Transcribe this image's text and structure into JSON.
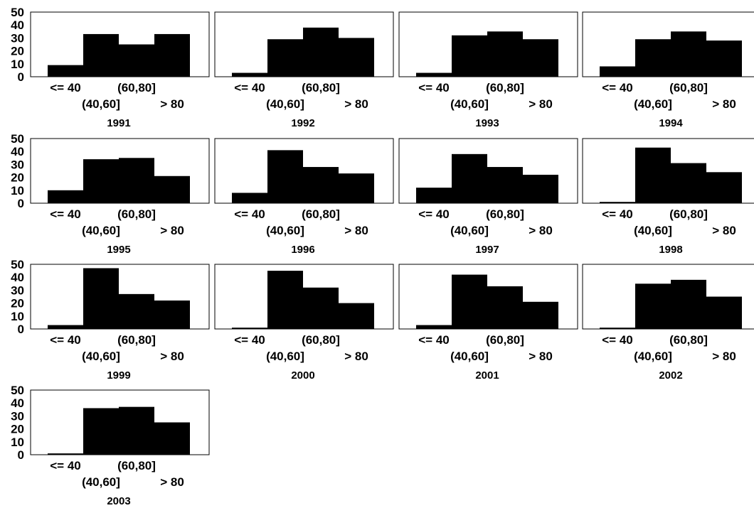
{
  "chart_data": {
    "type": "bar",
    "layout": "small-multiples histogram grid",
    "categories": [
      "<= 40",
      "(40,60]",
      "(60,80]",
      "> 80"
    ],
    "ylim": [
      0,
      50
    ],
    "yticks": [
      0,
      10,
      20,
      30,
      40,
      50
    ],
    "grid": false,
    "bar_color": "#000000",
    "panels": [
      {
        "title": "1991",
        "values": [
          9,
          33,
          25,
          33
        ]
      },
      {
        "title": "1992",
        "values": [
          3,
          29,
          38,
          30
        ]
      },
      {
        "title": "1993",
        "values": [
          3,
          32,
          35,
          29
        ]
      },
      {
        "title": "1994",
        "values": [
          8,
          29,
          35,
          28
        ]
      },
      {
        "title": "1995",
        "values": [
          10,
          34,
          35,
          21
        ]
      },
      {
        "title": "1996",
        "values": [
          8,
          41,
          28,
          23
        ]
      },
      {
        "title": "1997",
        "values": [
          12,
          38,
          28,
          22
        ]
      },
      {
        "title": "1998",
        "values": [
          1,
          43,
          31,
          24
        ]
      },
      {
        "title": "1999",
        "values": [
          3,
          47,
          27,
          22
        ]
      },
      {
        "title": "2000",
        "values": [
          1,
          45,
          32,
          20
        ]
      },
      {
        "title": "2001",
        "values": [
          3,
          42,
          33,
          21
        ]
      },
      {
        "title": "2002",
        "values": [
          1,
          35,
          38,
          25
        ]
      },
      {
        "title": "2003",
        "values": [
          1,
          36,
          37,
          25
        ]
      }
    ]
  }
}
